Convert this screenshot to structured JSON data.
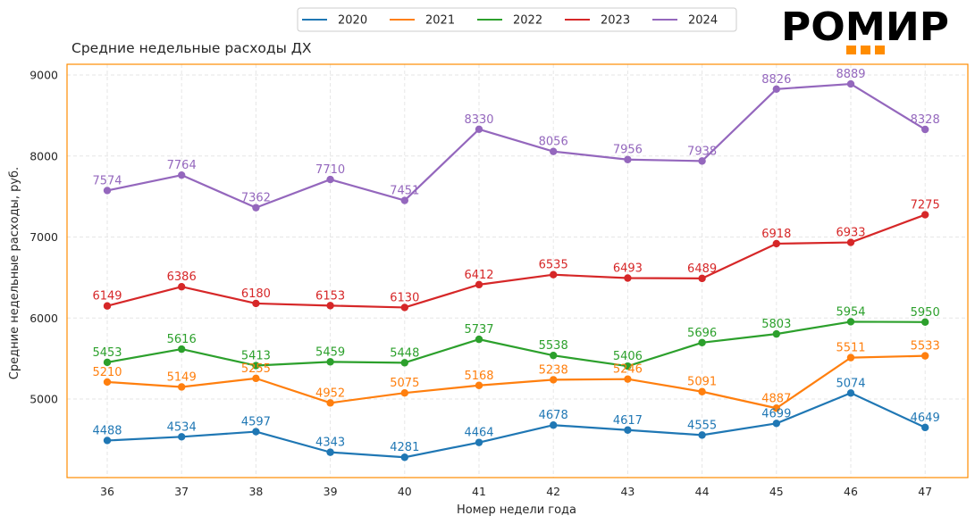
{
  "chart_data": {
    "type": "line",
    "title": "Средние недельные расходы ДХ",
    "xlabel": "Номер недели года",
    "ylabel": "Средние недельные расходы, руб.",
    "x": [
      36,
      37,
      38,
      39,
      40,
      41,
      42,
      43,
      44,
      45,
      46,
      47
    ],
    "xticks": [
      "36",
      "37",
      "38",
      "39",
      "40",
      "41",
      "42",
      "43",
      "44",
      "45",
      "46",
      "47"
    ],
    "yticks": [
      5000,
      6000,
      7000,
      8000,
      9000
    ],
    "ylim": [
      4050,
      9120
    ],
    "grid": true,
    "legend_position": "top-center",
    "series": [
      {
        "name": "2020",
        "color": "#1f77b4",
        "values": [
          4488,
          4534,
          4597,
          4343,
          4281,
          4464,
          4678,
          4617,
          4555,
          4699,
          5074,
          4649
        ]
      },
      {
        "name": "2021",
        "color": "#ff7f0e",
        "values": [
          5210,
          5149,
          5255,
          4952,
          5075,
          5168,
          5238,
          5246,
          5091,
          4887,
          5511,
          5533
        ]
      },
      {
        "name": "2022",
        "color": "#2ca02c",
        "values": [
          5453,
          5616,
          5413,
          5459,
          5448,
          5737,
          5538,
          5406,
          5696,
          5803,
          5954,
          5950
        ]
      },
      {
        "name": "2023",
        "color": "#d62728",
        "values": [
          6149,
          6386,
          6180,
          6153,
          6130,
          6412,
          6535,
          6493,
          6489,
          6918,
          6933,
          7275
        ]
      },
      {
        "name": "2024",
        "color": "#9467bd",
        "values": [
          7574,
          7764,
          7362,
          7710,
          7451,
          8330,
          8056,
          7956,
          7938,
          8826,
          8889,
          8328
        ]
      }
    ]
  },
  "branding": {
    "logo_text": "РОМИР",
    "accent_color": "#ff8c00"
  }
}
